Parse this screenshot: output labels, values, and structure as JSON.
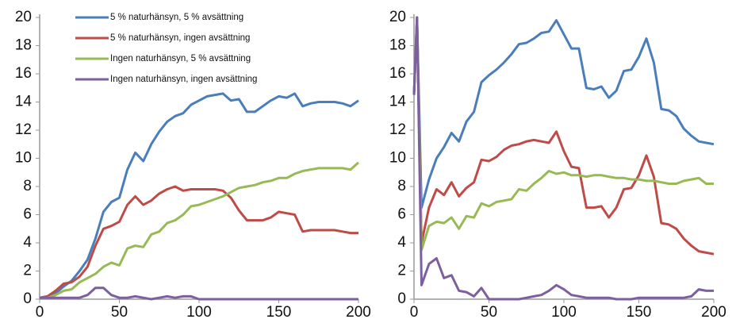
{
  "chart_data": [
    {
      "type": "line",
      "xlim": [
        0,
        200
      ],
      "xticks": [
        0,
        50,
        100,
        150,
        200
      ],
      "ylim": [
        0,
        20
      ],
      "yticks": [
        0,
        2,
        4,
        6,
        8,
        10,
        12,
        14,
        16,
        18,
        20
      ],
      "legend": "upper left",
      "x": [
        0,
        5,
        10,
        15,
        20,
        25,
        30,
        35,
        40,
        45,
        50,
        55,
        60,
        65,
        70,
        75,
        80,
        85,
        90,
        95,
        100,
        105,
        110,
        115,
        120,
        125,
        130,
        135,
        140,
        145,
        150,
        155,
        160,
        165,
        170,
        175,
        180,
        185,
        190,
        195,
        200
      ],
      "series": [
        {
          "name": "5 % naturhänsyn, 5 % avsättning",
          "color": "#4a7ebb",
          "values": [
            0.1,
            0.2,
            0.4,
            0.9,
            1.3,
            2,
            2.8,
            4.3,
            6.2,
            6.9,
            7.2,
            9.2,
            10.4,
            9.8,
            11,
            11.9,
            12.6,
            13,
            13.2,
            13.8,
            14.1,
            14.4,
            14.5,
            14.6,
            14.1,
            14.2,
            13.3,
            13.3,
            13.7,
            14.1,
            14.4,
            14.3,
            14.6,
            13.7,
            13.9,
            14,
            14,
            14,
            13.9,
            13.7,
            14.1
          ]
        },
        {
          "name": "5 % naturhänsyn, ingen avsättning",
          "color": "#be4b48",
          "values": [
            0.1,
            0.2,
            0.6,
            1.1,
            1.2,
            1.6,
            2.3,
            3.8,
            5,
            5.2,
            5.5,
            6.7,
            7.3,
            6.7,
            7,
            7.5,
            7.8,
            8,
            7.7,
            7.8,
            7.8,
            7.8,
            7.8,
            7.7,
            7.2,
            6.3,
            5.6,
            5.6,
            5.6,
            5.8,
            6.2,
            6.1,
            6,
            4.8,
            4.9,
            4.9,
            4.9,
            4.9,
            4.8,
            4.7,
            4.7
          ]
        },
        {
          "name": "Ingen naturhänsyn, 5 % avsättning",
          "color": "#98b954",
          "values": [
            0.1,
            0.1,
            0.3,
            0.6,
            0.7,
            1.2,
            1.5,
            1.8,
            2.3,
            2.6,
            2.4,
            3.6,
            3.8,
            3.7,
            4.6,
            4.8,
            5.4,
            5.6,
            6,
            6.6,
            6.7,
            6.9,
            7.1,
            7.3,
            7.6,
            7.9,
            8,
            8.1,
            8.3,
            8.4,
            8.6,
            8.6,
            8.9,
            9.1,
            9.2,
            9.3,
            9.3,
            9.3,
            9.3,
            9.2,
            9.7
          ]
        },
        {
          "name": "Ingen naturhänsyn, ingen avsättning",
          "color": "#7d5fa0",
          "values": [
            0.1,
            0.1,
            0.1,
            0.1,
            0.1,
            0.1,
            0.3,
            0.8,
            0.8,
            0.3,
            0.1,
            0.1,
            0.2,
            0.1,
            0,
            0.1,
            0.2,
            0.1,
            0.2,
            0.2,
            0,
            0,
            0,
            0,
            0,
            0,
            0,
            0,
            0,
            0,
            0,
            0,
            0,
            0,
            0,
            0,
            0,
            0,
            0,
            0,
            0
          ]
        }
      ]
    },
    {
      "type": "line",
      "xlim": [
        0,
        200
      ],
      "xticks": [
        0,
        50,
        100,
        150,
        200
      ],
      "ylim": [
        0,
        20
      ],
      "yticks": [
        0,
        2,
        4,
        6,
        8,
        10,
        12,
        14,
        16,
        18,
        20
      ],
      "x": [
        0,
        2,
        5,
        10,
        15,
        20,
        25,
        30,
        35,
        40,
        45,
        50,
        55,
        60,
        65,
        70,
        75,
        80,
        85,
        90,
        95,
        100,
        105,
        110,
        115,
        120,
        125,
        130,
        135,
        140,
        145,
        150,
        155,
        160,
        165,
        170,
        175,
        180,
        185,
        190,
        195,
        200
      ],
      "series": [
        {
          "color": "#4a7ebb",
          "values": [
            14.5,
            20,
            6.5,
            8.5,
            10,
            10.8,
            11.8,
            11.2,
            12.6,
            13.3,
            15.4,
            15.9,
            16.3,
            16.8,
            17.4,
            18.1,
            18.2,
            18.5,
            18.9,
            19,
            19.8,
            18.8,
            17.8,
            17.8,
            15,
            14.9,
            15.1,
            14.3,
            14.8,
            16.2,
            16.3,
            17.2,
            18.5,
            16.8,
            13.5,
            13.4,
            13,
            12.1,
            11.6,
            11.2,
            11.1,
            11
          ]
        },
        {
          "color": "#be4b48",
          "values": [
            14.5,
            20,
            4,
            6.5,
            7.8,
            7.4,
            8.3,
            7.3,
            7.9,
            8.3,
            9.9,
            9.8,
            10.1,
            10.6,
            10.9,
            11,
            11.2,
            11.3,
            11.2,
            11.1,
            11.9,
            10.5,
            9.4,
            9.3,
            6.5,
            6.5,
            6.6,
            5.8,
            6.5,
            7.8,
            7.9,
            8.8,
            10.2,
            8.7,
            5.4,
            5.3,
            5,
            4.3,
            3.8,
            3.4,
            3.3,
            3.2
          ]
        },
        {
          "color": "#98b954",
          "values": [
            14.5,
            20,
            3.5,
            5.2,
            5.5,
            5.4,
            5.8,
            5,
            5.9,
            5.8,
            6.8,
            6.6,
            6.9,
            7,
            7.1,
            7.8,
            7.7,
            8.2,
            8.6,
            9.1,
            8.9,
            9,
            8.8,
            8.8,
            8.7,
            8.8,
            8.8,
            8.7,
            8.6,
            8.6,
            8.5,
            8.5,
            8.4,
            8.4,
            8.3,
            8.2,
            8.2,
            8.4,
            8.5,
            8.6,
            8.2,
            8.2
          ]
        },
        {
          "color": "#7d5fa0",
          "values": [
            14.5,
            20,
            1,
            2.5,
            2.9,
            1.5,
            1.7,
            0.6,
            0.5,
            0.2,
            0.8,
            0,
            0,
            0,
            0,
            0,
            0.1,
            0.2,
            0.3,
            0.6,
            1,
            0.7,
            0.3,
            0.2,
            0.1,
            0.1,
            0.1,
            0.1,
            0,
            0,
            0,
            0.1,
            0.1,
            0.1,
            0.1,
            0.1,
            0.1,
            0.1,
            0.2,
            0.7,
            0.6,
            0.6
          ]
        }
      ]
    }
  ]
}
